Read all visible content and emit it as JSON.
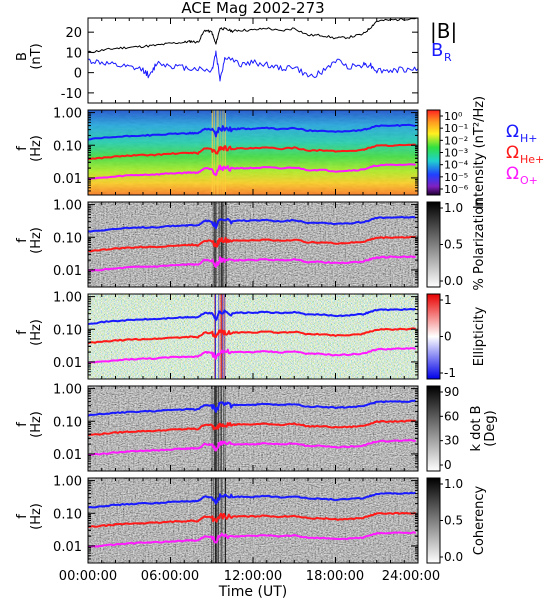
{
  "title": "ACE Mag 2002-273",
  "xaxis": {
    "label": "Time (UT)",
    "ticks": [
      "00:00:00",
      "06:00:00",
      "12:00:00",
      "18:00:00",
      "24:00:00"
    ],
    "range_hours": [
      0,
      24
    ]
  },
  "chart_data": [
    {
      "type": "line",
      "panel": "magnetic-field",
      "ylabel_top": "B",
      "ylabel_bottom": "(nT)",
      "ylim": [
        -15,
        27
      ],
      "yticks": [
        "20",
        "10",
        "0",
        "-10"
      ],
      "ytick_values": [
        20,
        10,
        0,
        -10
      ],
      "legend": [
        "|B|",
        "B",
        "R"
      ],
      "series": [
        {
          "name": "|B|",
          "color": "#000000",
          "x": [
            0,
            1,
            2,
            3,
            4,
            5,
            6,
            7,
            7.5,
            8,
            8.5,
            9,
            9.3,
            9.6,
            10,
            10.5,
            11,
            12,
            13,
            14,
            15,
            16,
            17,
            18,
            19,
            20,
            20.5,
            21,
            22,
            23,
            24
          ],
          "values": [
            10,
            11,
            12,
            12.5,
            13,
            13.5,
            14.5,
            15,
            15.5,
            15,
            21,
            20,
            14,
            22,
            21.5,
            20.5,
            21,
            21,
            22,
            20.5,
            22,
            18.5,
            18.5,
            17,
            17.5,
            19,
            22,
            25.5,
            26,
            26.5,
            27
          ]
        },
        {
          "name": "B_R",
          "color": "#1a1aff",
          "x": [
            0,
            1,
            2,
            3,
            4,
            4.5,
            5,
            6,
            7,
            8,
            9,
            9.3,
            9.6,
            10,
            11,
            12,
            13,
            14,
            15,
            16,
            17,
            18,
            19,
            20,
            20.5,
            21,
            22,
            23,
            24
          ],
          "values": [
            6,
            5,
            3.5,
            2.5,
            1.5,
            -2,
            5,
            3.5,
            2.5,
            2,
            1,
            10,
            -3,
            8,
            4,
            5,
            4,
            2,
            3,
            -2,
            0,
            6,
            3,
            4,
            4,
            1,
            1,
            1.5,
            2
          ]
        }
      ]
    },
    {
      "type": "heatmap",
      "panel": "power-spectral-density",
      "ylabel_top": "f",
      "ylabel_bottom": "(Hz)",
      "yscale": "log",
      "ylim": [
        0.003,
        1.2
      ],
      "yticks": [
        "1.00",
        "0.10",
        "0.01"
      ],
      "ytick_values": [
        1,
        0.1,
        0.01
      ],
      "colorbar": {
        "label": "Intensity (nT²/Hz)",
        "ticks": [
          "10⁰",
          "10⁻¹",
          "10⁻²",
          "10⁻³",
          "10⁻⁴",
          "10⁻⁵",
          "10⁻⁶"
        ]
      },
      "legend": [
        "ΩH+",
        "ΩHe+",
        "ΩO+"
      ]
    },
    {
      "type": "heatmap",
      "panel": "percent-polarization",
      "ylabel_top": "f",
      "ylabel_bottom": "(Hz)",
      "yscale": "log",
      "ylim": [
        0.003,
        1.2
      ],
      "yticks": [
        "1.00",
        "0.10",
        "0.01"
      ],
      "ytick_values": [
        1,
        0.1,
        0.01
      ],
      "colorbar": {
        "label": "% Polarization",
        "ticks": [
          "1.0",
          "0.5",
          "0.0"
        ]
      }
    },
    {
      "type": "heatmap",
      "panel": "ellipticity",
      "ylabel_top": "f",
      "ylabel_bottom": "(Hz)",
      "yscale": "log",
      "ylim": [
        0.003,
        1.2
      ],
      "yticks": [
        "1.00",
        "0.10",
        "0.01"
      ],
      "ytick_values": [
        1,
        0.1,
        0.01
      ],
      "colorbar": {
        "label": "Ellipticity",
        "ticks": [
          "1",
          "0",
          "-1"
        ]
      }
    },
    {
      "type": "heatmap",
      "panel": "k-dot-b",
      "ylabel_top": "f",
      "ylabel_bottom": "(Hz)",
      "yscale": "log",
      "ylim": [
        0.003,
        1.2
      ],
      "yticks": [
        "1.00",
        "0.10",
        "0.01"
      ],
      "ytick_values": [
        1,
        0.1,
        0.01
      ],
      "colorbar": {
        "label_top": "k dot B",
        "label_bottom": "(Deg)",
        "ticks": [
          "90",
          "60",
          "30",
          "0"
        ]
      }
    },
    {
      "type": "heatmap",
      "panel": "coherency",
      "ylabel_top": "f",
      "ylabel_bottom": "(Hz)",
      "yscale": "log",
      "ylim": [
        0.003,
        1.2
      ],
      "yticks": [
        "1.00",
        "0.10",
        "0.01"
      ],
      "ytick_values": [
        1,
        0.1,
        0.01
      ],
      "colorbar": {
        "label": "Coherency",
        "ticks": [
          "1.0",
          "0.5",
          "0.0"
        ]
      }
    }
  ],
  "gyrofrequency_lines": {
    "x": [
      0,
      1,
      2,
      3,
      4,
      5,
      6,
      7,
      7.5,
      8,
      8.5,
      9,
      9.3,
      9.6,
      10,
      10.5,
      11,
      12,
      13,
      14,
      15,
      16,
      17,
      18,
      19,
      20,
      20.5,
      21,
      22,
      23,
      24
    ],
    "series": [
      {
        "name": "ΩH+",
        "color": "#1a1aff",
        "values": [
          0.15,
          0.165,
          0.18,
          0.19,
          0.2,
          0.205,
          0.22,
          0.23,
          0.235,
          0.23,
          0.32,
          0.305,
          0.215,
          0.335,
          0.33,
          0.31,
          0.32,
          0.32,
          0.335,
          0.31,
          0.335,
          0.28,
          0.28,
          0.26,
          0.27,
          0.29,
          0.335,
          0.39,
          0.4,
          0.405,
          0.41
        ]
      },
      {
        "name": "ΩHe+",
        "color": "#ff1a1a",
        "values": [
          0.038,
          0.041,
          0.045,
          0.048,
          0.05,
          0.051,
          0.055,
          0.057,
          0.059,
          0.057,
          0.08,
          0.076,
          0.053,
          0.084,
          0.082,
          0.078,
          0.08,
          0.08,
          0.084,
          0.078,
          0.084,
          0.07,
          0.07,
          0.065,
          0.067,
          0.072,
          0.084,
          0.097,
          0.099,
          0.1,
          0.103
        ]
      },
      {
        "name": "ΩO+",
        "color": "#ff1aff",
        "values": [
          0.0095,
          0.01,
          0.011,
          0.012,
          0.0125,
          0.0128,
          0.0138,
          0.0143,
          0.0148,
          0.0143,
          0.02,
          0.019,
          0.0133,
          0.021,
          0.0205,
          0.0195,
          0.02,
          0.02,
          0.021,
          0.0195,
          0.021,
          0.0175,
          0.0175,
          0.016,
          0.0168,
          0.018,
          0.021,
          0.024,
          0.025,
          0.0253,
          0.026
        ]
      }
    ]
  }
}
